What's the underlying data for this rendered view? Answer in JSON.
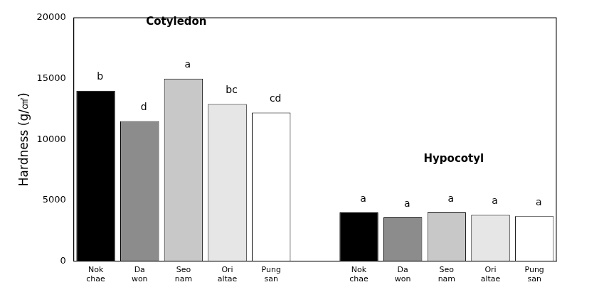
{
  "chart_data": {
    "type": "bar",
    "y_label": "Hardness (g/㎠)",
    "categories": [
      "Nok chae",
      "Da won",
      "Seo nam",
      "Ori altae",
      "Pung san",
      null,
      "Nok chae",
      "Da won",
      "Seo nam",
      "Ori altae",
      "Pung san"
    ],
    "values": [
      14000,
      11500,
      15000,
      12900,
      12200,
      null,
      4000,
      3600,
      4000,
      3800,
      3700
    ],
    "colors": [
      "#000000",
      "#8c8c8c",
      "#c8c8c8",
      "#e6e6e6",
      "#ffffff",
      null,
      "#000000",
      "#8c8c8c",
      "#c8c8c8",
      "#e6e6e6",
      "#ffffff"
    ],
    "annotations": {
      "letters": [
        "b",
        "d",
        "a",
        "bc",
        "cd",
        null,
        "a",
        "a",
        "a",
        "a",
        "a"
      ],
      "groups": [
        "Cotyledon",
        "Hypocotyl"
      ]
    },
    "ylim": [
      0,
      20000
    ],
    "yticks": [
      0,
      5000,
      10000,
      15000,
      20000
    ],
    "grid": false,
    "data_labels": false
  }
}
